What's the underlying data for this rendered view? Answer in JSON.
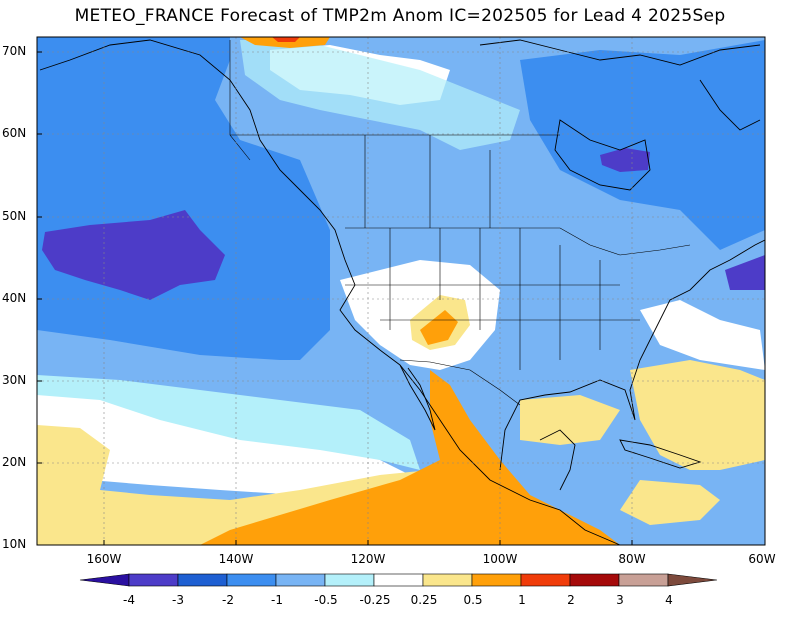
{
  "title": "METEO_FRANCE Forecast of TMP2m Anom IC=202505 for Lead 4 2025Sep",
  "y_ticks": [
    "70N",
    "60N",
    "50N",
    "40N",
    "30N",
    "20N",
    "10N"
  ],
  "x_ticks": [
    "160W",
    "140W",
    "120W",
    "100W",
    "80W",
    "60W"
  ],
  "colorbar": {
    "labels": [
      "-4",
      "-3",
      "-2",
      "-1",
      "-0.5",
      "-0.25",
      "0.25",
      "0.5",
      "1",
      "2",
      "3",
      "4"
    ],
    "colors": [
      "#2a10a0",
      "#4d3cc8",
      "#1e5fd2",
      "#3c8ef0",
      "#78b4f4",
      "#b4f0fa",
      "#ffffff",
      "#fae68c",
      "#ffa00a",
      "#f03c0a",
      "#a50a0a",
      "#c8a096",
      "#7d4a3c"
    ]
  },
  "colors": {
    "ocean_base": "#78b4f4",
    "warm_neutral": "#ffffff",
    "coast": "#000000"
  }
}
